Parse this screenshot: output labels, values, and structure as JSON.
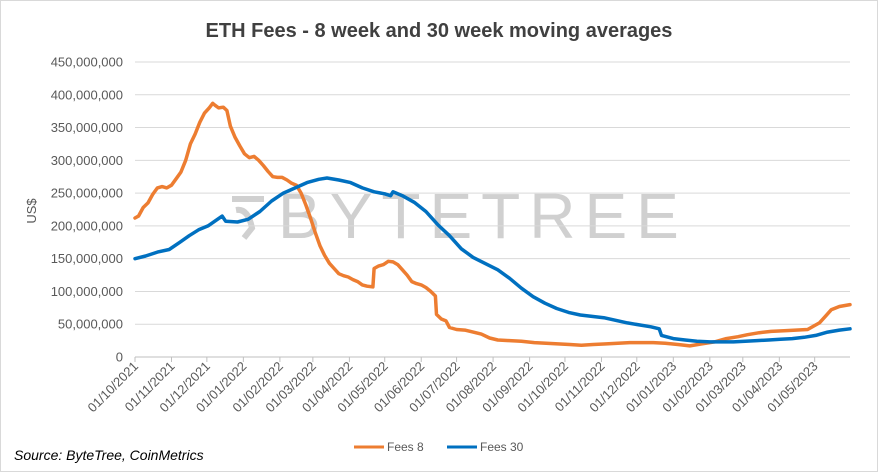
{
  "chart_data": {
    "type": "line",
    "title": "ETH Fees - 8 week and 30 week moving averages",
    "ylabel": "US$",
    "xlabel": "",
    "ylim": [
      0,
      450000000
    ],
    "y_ticks": [
      "0",
      "50,000,000",
      "100,000,000",
      "150,000,000",
      "200,000,000",
      "250,000,000",
      "300,000,000",
      "350,000,000",
      "400,000,000",
      "450,000,000"
    ],
    "x_ticks": [
      "01/10/2021",
      "01/11/2021",
      "01/12/2021",
      "01/01/2022",
      "01/02/2022",
      "01/03/2022",
      "01/04/2022",
      "01/05/2022",
      "01/06/2022",
      "01/07/2022",
      "01/08/2022",
      "01/09/2022",
      "01/10/2022",
      "01/11/2022",
      "01/12/2022",
      "01/01/2023",
      "01/02/2023",
      "01/03/2023",
      "01/04/2023",
      "01/05/2023"
    ],
    "x_range": [
      "2021-10-01",
      "2023-05-31"
    ],
    "grid": "horizontal",
    "legend_position": "bottom",
    "series": [
      {
        "name": "Fees 8",
        "color": "#ed7d31",
        "points": [
          [
            "2021-10-01",
            212000000
          ],
          [
            "2021-10-04",
            215000000
          ],
          [
            "2021-10-08",
            228000000
          ],
          [
            "2021-10-12",
            235000000
          ],
          [
            "2021-10-16",
            248000000
          ],
          [
            "2021-10-20",
            258000000
          ],
          [
            "2021-10-24",
            260000000
          ],
          [
            "2021-10-28",
            258000000
          ],
          [
            "2021-11-01",
            262000000
          ],
          [
            "2021-11-05",
            272000000
          ],
          [
            "2021-11-09",
            282000000
          ],
          [
            "2021-11-13",
            300000000
          ],
          [
            "2021-11-17",
            325000000
          ],
          [
            "2021-11-21",
            340000000
          ],
          [
            "2021-11-25",
            358000000
          ],
          [
            "2021-11-29",
            372000000
          ],
          [
            "2021-12-03",
            380000000
          ],
          [
            "2021-12-06",
            387000000
          ],
          [
            "2021-12-08",
            384000000
          ],
          [
            "2021-12-11",
            380000000
          ],
          [
            "2021-12-15",
            381000000
          ],
          [
            "2021-12-18",
            376000000
          ],
          [
            "2021-12-21",
            352000000
          ],
          [
            "2021-12-25",
            335000000
          ],
          [
            "2021-12-29",
            322000000
          ],
          [
            "2022-01-02",
            310000000
          ],
          [
            "2022-01-06",
            304000000
          ],
          [
            "2022-01-10",
            306000000
          ],
          [
            "2022-01-14",
            300000000
          ],
          [
            "2022-01-18",
            292000000
          ],
          [
            "2022-01-22",
            283000000
          ],
          [
            "2022-01-26",
            275000000
          ],
          [
            "2022-01-30",
            274000000
          ],
          [
            "2022-02-03",
            274000000
          ],
          [
            "2022-02-07",
            270000000
          ],
          [
            "2022-02-11",
            265000000
          ],
          [
            "2022-02-15",
            262000000
          ],
          [
            "2022-02-19",
            250000000
          ],
          [
            "2022-02-23",
            232000000
          ],
          [
            "2022-02-27",
            212000000
          ],
          [
            "2022-03-03",
            190000000
          ],
          [
            "2022-03-07",
            170000000
          ],
          [
            "2022-03-11",
            155000000
          ],
          [
            "2022-03-15",
            143000000
          ],
          [
            "2022-03-19",
            135000000
          ],
          [
            "2022-03-23",
            127000000
          ],
          [
            "2022-03-27",
            124000000
          ],
          [
            "2022-03-31",
            122000000
          ],
          [
            "2022-04-04",
            118000000
          ],
          [
            "2022-04-08",
            115000000
          ],
          [
            "2022-04-12",
            110000000
          ],
          [
            "2022-04-16",
            108000000
          ],
          [
            "2022-04-21",
            107000000
          ],
          [
            "2022-04-22",
            135000000
          ],
          [
            "2022-04-26",
            139000000
          ],
          [
            "2022-04-30",
            141000000
          ],
          [
            "2022-05-04",
            146000000
          ],
          [
            "2022-05-08",
            145000000
          ],
          [
            "2022-05-12",
            141000000
          ],
          [
            "2022-05-16",
            133000000
          ],
          [
            "2022-05-20",
            125000000
          ],
          [
            "2022-05-24",
            115000000
          ],
          [
            "2022-05-28",
            112000000
          ],
          [
            "2022-06-01",
            110000000
          ],
          [
            "2022-06-05",
            106000000
          ],
          [
            "2022-06-09",
            100000000
          ],
          [
            "2022-06-13",
            93000000
          ],
          [
            "2022-06-14",
            65000000
          ],
          [
            "2022-06-18",
            58000000
          ],
          [
            "2022-06-22",
            55000000
          ],
          [
            "2022-06-25",
            45000000
          ],
          [
            "2022-07-01",
            42000000
          ],
          [
            "2022-07-08",
            41000000
          ],
          [
            "2022-07-15",
            38000000
          ],
          [
            "2022-07-22",
            35000000
          ],
          [
            "2022-07-29",
            29000000
          ],
          [
            "2022-08-05",
            26000000
          ],
          [
            "2022-08-15",
            25000000
          ],
          [
            "2022-08-25",
            24000000
          ],
          [
            "2022-09-05",
            22000000
          ],
          [
            "2022-09-15",
            21000000
          ],
          [
            "2022-09-25",
            20000000
          ],
          [
            "2022-10-05",
            19000000
          ],
          [
            "2022-10-15",
            18000000
          ],
          [
            "2022-10-25",
            19000000
          ],
          [
            "2022-11-05",
            20000000
          ],
          [
            "2022-11-15",
            21000000
          ],
          [
            "2022-11-25",
            22000000
          ],
          [
            "2022-12-05",
            22000000
          ],
          [
            "2022-12-15",
            22000000
          ],
          [
            "2022-12-25",
            21000000
          ],
          [
            "2023-01-05",
            19000000
          ],
          [
            "2023-01-15",
            17000000
          ],
          [
            "2023-01-25",
            20000000
          ],
          [
            "2023-02-05",
            23000000
          ],
          [
            "2023-02-15",
            28000000
          ],
          [
            "2023-02-25",
            31000000
          ],
          [
            "2023-03-05",
            34000000
          ],
          [
            "2023-03-15",
            37000000
          ],
          [
            "2023-03-25",
            39000000
          ],
          [
            "2023-04-05",
            40000000
          ],
          [
            "2023-04-15",
            41000000
          ],
          [
            "2023-04-25",
            42000000
          ],
          [
            "2023-05-01",
            48000000
          ],
          [
            "2023-05-05",
            52000000
          ],
          [
            "2023-05-10",
            62000000
          ],
          [
            "2023-05-15",
            72000000
          ],
          [
            "2023-05-22",
            77000000
          ],
          [
            "2023-05-31",
            80000000
          ]
        ]
      },
      {
        "name": "Fees 30",
        "color": "#0070c0",
        "points": [
          [
            "2021-10-01",
            150000000
          ],
          [
            "2021-10-10",
            154000000
          ],
          [
            "2021-10-20",
            160000000
          ],
          [
            "2021-10-30",
            164000000
          ],
          [
            "2021-11-08",
            175000000
          ],
          [
            "2021-11-16",
            185000000
          ],
          [
            "2021-11-24",
            194000000
          ],
          [
            "2021-12-02",
            200000000
          ],
          [
            "2021-12-10",
            210000000
          ],
          [
            "2021-12-14",
            215000000
          ],
          [
            "2021-12-17",
            207000000
          ],
          [
            "2021-12-27",
            206000000
          ],
          [
            "2022-01-05",
            210000000
          ],
          [
            "2022-01-15",
            222000000
          ],
          [
            "2022-01-25",
            238000000
          ],
          [
            "2022-02-04",
            250000000
          ],
          [
            "2022-02-14",
            258000000
          ],
          [
            "2022-02-24",
            266000000
          ],
          [
            "2022-03-06",
            271000000
          ],
          [
            "2022-03-13",
            273000000
          ],
          [
            "2022-03-23",
            270000000
          ],
          [
            "2022-04-02",
            266000000
          ],
          [
            "2022-04-12",
            258000000
          ],
          [
            "2022-04-22",
            252000000
          ],
          [
            "2022-05-01",
            249000000
          ],
          [
            "2022-05-06",
            246000000
          ],
          [
            "2022-05-08",
            252000000
          ],
          [
            "2022-05-16",
            246000000
          ],
          [
            "2022-05-26",
            236000000
          ],
          [
            "2022-06-05",
            222000000
          ],
          [
            "2022-06-15",
            202000000
          ],
          [
            "2022-06-25",
            185000000
          ],
          [
            "2022-07-05",
            165000000
          ],
          [
            "2022-07-15",
            152000000
          ],
          [
            "2022-07-25",
            143000000
          ],
          [
            "2022-08-05",
            133000000
          ],
          [
            "2022-08-15",
            120000000
          ],
          [
            "2022-08-25",
            105000000
          ],
          [
            "2022-09-04",
            92000000
          ],
          [
            "2022-09-14",
            82000000
          ],
          [
            "2022-09-24",
            74000000
          ],
          [
            "2022-10-04",
            68000000
          ],
          [
            "2022-10-14",
            64000000
          ],
          [
            "2022-10-24",
            62000000
          ],
          [
            "2022-11-03",
            60000000
          ],
          [
            "2022-11-13",
            56000000
          ],
          [
            "2022-11-23",
            52000000
          ],
          [
            "2022-12-03",
            49000000
          ],
          [
            "2022-12-13",
            46000000
          ],
          [
            "2022-12-20",
            43000000
          ],
          [
            "2022-12-22",
            33000000
          ],
          [
            "2023-01-01",
            28000000
          ],
          [
            "2023-01-11",
            26000000
          ],
          [
            "2023-01-21",
            24000000
          ],
          [
            "2023-02-01",
            23000000
          ],
          [
            "2023-02-11",
            23000000
          ],
          [
            "2023-02-21",
            23000000
          ],
          [
            "2023-03-03",
            24000000
          ],
          [
            "2023-03-13",
            25000000
          ],
          [
            "2023-03-23",
            26000000
          ],
          [
            "2023-04-02",
            27000000
          ],
          [
            "2023-04-12",
            28000000
          ],
          [
            "2023-04-22",
            30000000
          ],
          [
            "2023-05-02",
            33000000
          ],
          [
            "2023-05-12",
            38000000
          ],
          [
            "2023-05-22",
            41000000
          ],
          [
            "2023-05-31",
            43000000
          ]
        ]
      }
    ]
  },
  "watermark": "BYTETREE",
  "source": "Source: ByteTree, CoinMetrics"
}
